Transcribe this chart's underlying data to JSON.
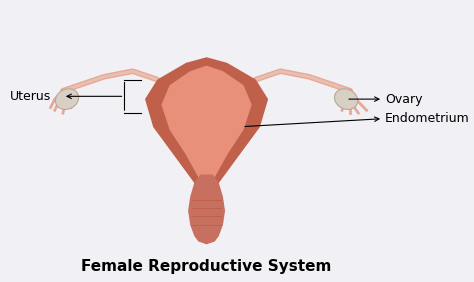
{
  "title": "Female Reproductive System",
  "title_fontsize": 11,
  "title_fontweight": "bold",
  "bg_color": "#f0f0f5",
  "labels": {
    "uterus": "Uterus",
    "ovary": "Ovary",
    "endometrium": "Endometrium"
  },
  "label_fontsize": 9,
  "uterus_color": "#c0604a",
  "uterus_light": "#e8907a",
  "uterus_inner": "#d4756a",
  "ovary_color": "#d9d0c8",
  "tube_color": "#e8a898",
  "cervix_color": "#c87060"
}
